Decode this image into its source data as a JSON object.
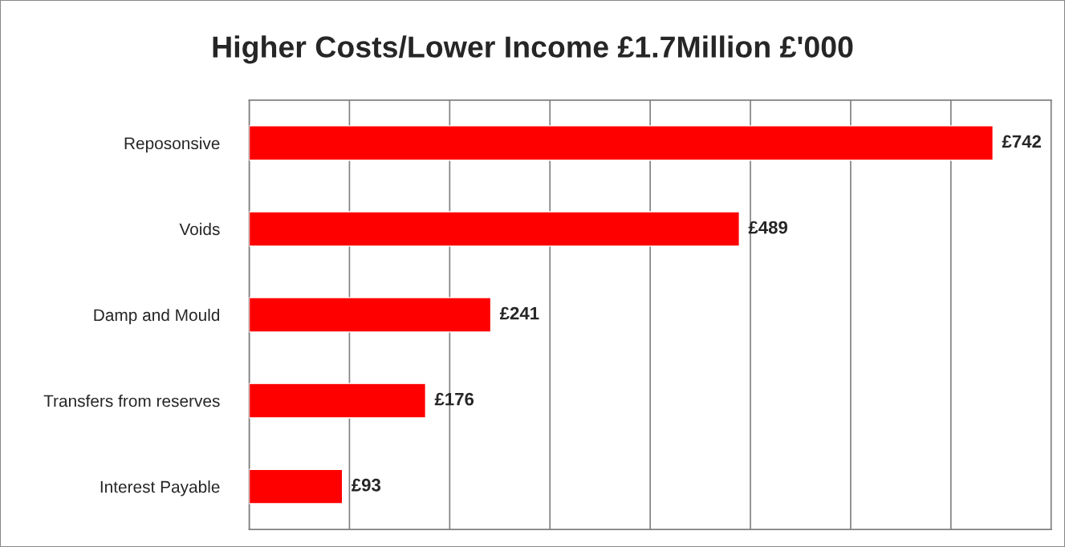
{
  "chart_data": {
    "type": "bar",
    "orientation": "horizontal",
    "title": "Higher Costs/Lower Income £1.7Million £'000",
    "categories": [
      "Reposonsive",
      "Voids",
      "Damp and Mould",
      "Transfers from reserves",
      "Interest Payable"
    ],
    "values": [
      742,
      489,
      241,
      176,
      93
    ],
    "color": "#ff0000",
    "value_labels": [
      "£742",
      "£489",
      "£241",
      "£176",
      "£93"
    ],
    "xlim": [
      0,
      800
    ],
    "xticks": [
      {
        "value": 0,
        "label": null
      },
      {
        "value": 100,
        "label": null
      },
      {
        "value": 200,
        "label": null
      },
      {
        "value": 300,
        "label": null
      },
      {
        "value": 400,
        "label": null
      },
      {
        "value": 500,
        "label": null
      },
      {
        "value": 600,
        "label": null
      },
      {
        "value": 700,
        "label": null
      },
      {
        "value": 800,
        "label": null
      }
    ],
    "grid": "x",
    "tick_labels": "y",
    "legend": false
  }
}
